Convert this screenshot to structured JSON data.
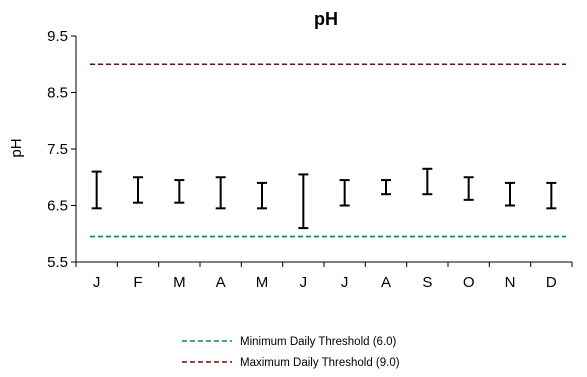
{
  "chart_data": {
    "type": "range-bar",
    "title": "pH",
    "ylabel": "pH",
    "xlabel": "",
    "ylim": [
      5.5,
      9.5
    ],
    "yticks": [
      "5.5",
      "6.5",
      "7.5",
      "8.5",
      "9.5"
    ],
    "categories": [
      "J",
      "F",
      "M",
      "A",
      "M",
      "J",
      "J",
      "A",
      "S",
      "O",
      "N",
      "D"
    ],
    "series": [
      {
        "min": [
          6.45,
          6.55,
          6.55,
          6.45,
          6.45,
          6.1,
          6.5,
          6.7,
          6.7,
          6.6,
          6.5,
          6.45
        ],
        "max": [
          7.1,
          7.0,
          6.95,
          7.0,
          6.9,
          7.05,
          6.95,
          6.95,
          7.15,
          7.0,
          6.9,
          6.9
        ]
      }
    ],
    "thresholds": [
      {
        "name": "Minimum Daily Threshold (6.0)",
        "value": 5.95,
        "color": "#008080"
      },
      {
        "name": "Maximum Daily Threshold (9.0)",
        "value": 9.0,
        "color": "#800000"
      }
    ],
    "grid": false,
    "legend_position": "bottom"
  }
}
